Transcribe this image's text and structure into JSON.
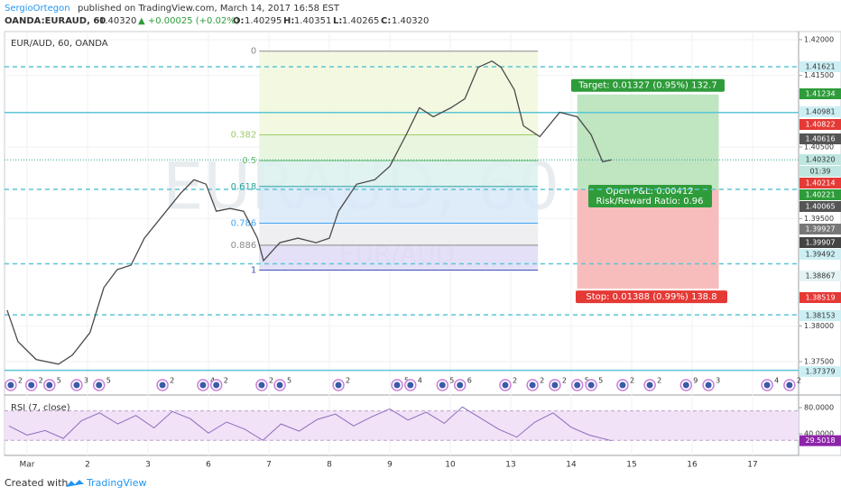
{
  "header": {
    "author": "SergioOrtegon",
    "published": "published on TradingView.com, March 14, 2017 16:58 EST",
    "symbol": "OANDA:EURAUD, 60",
    "last": "1.40320",
    "change": "▲ +0.00025 (+0.02%)",
    "open_label": "O:",
    "open": "1.40295",
    "high_label": "H:",
    "high": "1.40351",
    "low_label": "L:",
    "low": "1.40265",
    "close_label": "C:",
    "close": "1.40320"
  },
  "pane_title": "EUR/AUD, 60, OANDA",
  "watermark": "EURAUD, 60",
  "watermark_sub": "EUR/AUD",
  "chart_data": [
    {
      "type": "line",
      "xlim": [
        -0.373,
        12.761
      ],
      "xticks": [
        {
          "value": 0,
          "label": "Mar"
        },
        {
          "value": 1,
          "label": "2"
        },
        {
          "value": 2,
          "label": "3"
        },
        {
          "value": 3,
          "label": "6"
        },
        {
          "value": 4,
          "label": "7"
        },
        {
          "value": 5,
          "label": "8"
        },
        {
          "value": 6,
          "label": "9"
        },
        {
          "value": 7,
          "label": "10"
        },
        {
          "value": 8,
          "label": "13"
        },
        {
          "value": 9,
          "label": "14"
        },
        {
          "value": 10,
          "label": "15"
        },
        {
          "value": 11,
          "label": "16"
        },
        {
          "value": 12,
          "label": "17"
        }
      ],
      "ylim": [
        1.37046,
        1.42113
      ],
      "yticks": [
        {
          "value": 1.42,
          "label": "1.42000"
        },
        {
          "value": 1.415,
          "label": "1.41500"
        },
        {
          "value": 1.405,
          "label": "1.40500"
        },
        {
          "value": 1.395,
          "label": "1.39500"
        },
        {
          "value": 1.38,
          "label": "1.38000"
        },
        {
          "value": 1.375,
          "label": "1.37500"
        }
      ],
      "grid": true,
      "x": [
        -0.33,
        -0.15,
        0.15,
        0.52,
        0.75,
        1.04,
        1.27,
        1.49,
        1.72,
        1.94,
        2.24,
        2.54,
        2.76,
        2.96,
        3.13,
        3.36,
        3.58,
        3.81,
        3.91,
        4.18,
        4.48,
        4.78,
        5.0,
        5.15,
        5.45,
        5.75,
        6.0,
        6.27,
        6.49,
        6.72,
        7.01,
        7.24,
        7.46,
        7.69,
        7.84,
        8.06,
        8.21,
        8.48,
        8.81,
        9.1,
        9.33,
        9.52,
        9.67
      ],
      "series": [
        {
          "color": "#4a4a4a",
          "values": [
            1.3822,
            1.3778,
            1.3753,
            1.37465,
            1.37591,
            1.37905,
            1.38534,
            1.38785,
            1.38848,
            1.39225,
            1.39539,
            1.39853,
            1.40042,
            1.3998,
            1.39602,
            1.3964,
            1.39602,
            1.39225,
            1.38911,
            1.39162,
            1.39225,
            1.39162,
            1.39225,
            1.39602,
            1.39979,
            1.40042,
            1.40231,
            1.4067,
            1.41048,
            1.40922,
            1.41048,
            1.41173,
            1.41613,
            1.41701,
            1.41613,
            1.41299,
            1.40796,
            1.40645,
            1.40985,
            1.40922,
            1.4067,
            1.40293,
            1.4032
          ]
        }
      ],
      "last_price": 1.4032,
      "hlines": [
        {
          "value": 1.41621,
          "style": "dashed"
        },
        {
          "value": 1.40981,
          "style": "solid"
        },
        {
          "value": 1.39907,
          "style": "dashed"
        },
        {
          "value": 1.38867,
          "style": "dashed"
        },
        {
          "value": 1.38153,
          "style": "dashed"
        },
        {
          "value": 1.37379,
          "style": "solid"
        }
      ],
      "hline_color": "#5cc6d6",
      "fib": {
        "x": [
          3.84,
          8.45
        ],
        "high": 1.41839,
        "low": 1.38779,
        "levels": [
          0,
          0.382,
          0.5,
          0.618,
          0.786,
          0.886,
          1
        ],
        "colors": [
          "#8a8a8a",
          "#9ccc65",
          "#66bb6a",
          "#26a69a",
          "#42a5f5",
          "#8a8a8a",
          "#3f51b5"
        ],
        "fills": [
          "#f1f7dc",
          "#e5f4d9",
          "#dcf1ee",
          "#d8e8f8",
          "#ececf0",
          "#dedbf6"
        ]
      },
      "position": {
        "x": [
          9.1,
          11.44
        ],
        "entry": 1.39907,
        "target": 1.41234,
        "stop": 1.38519,
        "target_label": "Target: 0.01327 (0.95%) 132.7",
        "pnl_label": "Open P&L: 0.00412",
        "rr_label": "Risk/Reward Ratio: 0.96",
        "stop_label": "Stop: 0.01388 (0.99%) 138.8"
      },
      "price_labels": [
        {
          "text": "1.41621",
          "bg": "#cdeff4",
          "fg": "#333333"
        },
        {
          "text": "1.41234",
          "bg": "#2e9c3a",
          "fg": "#ffffff"
        },
        {
          "text": "1.40981",
          "bg": "#cdeff4",
          "fg": "#333333"
        },
        {
          "text": "1.40822",
          "bg": "#e53935",
          "fg": "#ffffff"
        },
        {
          "text": "1.40616",
          "bg": "#555555",
          "fg": "#ffffff"
        },
        {
          "text": "1.40320",
          "bg": "#bfe6e0",
          "fg": "#333333"
        },
        {
          "text": "01:39",
          "bg": "#bfe6e0",
          "fg": "#333333"
        },
        {
          "text": "1.40214",
          "bg": "#e53935",
          "fg": "#ffffff"
        },
        {
          "text": "1.40221",
          "bg": "#2e9c3a",
          "fg": "#ffffff"
        },
        {
          "text": "1.40065",
          "bg": "#555555",
          "fg": "#ffffff"
        },
        {
          "text": "1.39927",
          "bg": "#777777",
          "fg": "#ffffff"
        },
        {
          "text": "1.39907",
          "bg": "#444444",
          "fg": "#ffffff"
        },
        {
          "text": "1.39492",
          "bg": "#cdeff4",
          "fg": "#333333"
        },
        {
          "text": "1.38867",
          "bg": "#e6f3f5",
          "fg": "#333333"
        },
        {
          "text": "1.38519",
          "bg": "#e53935",
          "fg": "#ffffff"
        },
        {
          "text": "1.38153",
          "bg": "#cdeff4",
          "fg": "#333333"
        },
        {
          "text": "1.37379",
          "bg": "#cdeff4",
          "fg": "#333333"
        }
      ],
      "events": [
        {
          "x": -0.27,
          "label": "2"
        },
        {
          "x": 0.07,
          "label": "2"
        },
        {
          "x": 0.37,
          "label": "5"
        },
        {
          "x": 0.82,
          "label": "3"
        },
        {
          "x": 1.19,
          "label": "5"
        },
        {
          "x": 2.24,
          "label": "2"
        },
        {
          "x": 2.91,
          "label": "4"
        },
        {
          "x": 3.13,
          "label": "2"
        },
        {
          "x": 3.88,
          "label": "2"
        },
        {
          "x": 4.18,
          "label": "5"
        },
        {
          "x": 5.15,
          "label": "2"
        },
        {
          "x": 6.12,
          "label": "5"
        },
        {
          "x": 6.34,
          "label": "4"
        },
        {
          "x": 6.87,
          "label": "5"
        },
        {
          "x": 7.16,
          "label": "6"
        },
        {
          "x": 7.91,
          "label": "2"
        },
        {
          "x": 8.36,
          "label": "2"
        },
        {
          "x": 8.73,
          "label": "2"
        },
        {
          "x": 9.1,
          "label": "5"
        },
        {
          "x": 9.33,
          "label": "5"
        },
        {
          "x": 9.85,
          "label": "2"
        },
        {
          "x": 10.3,
          "label": "2"
        },
        {
          "x": 10.9,
          "label": "9"
        },
        {
          "x": 11.27,
          "label": "3"
        },
        {
          "x": 12.24,
          "label": "4"
        },
        {
          "x": 12.61,
          "label": "2"
        }
      ]
    },
    {
      "type": "line",
      "title": "RSI (7, close)",
      "ylim": [
        7,
        96.5
      ],
      "yticks": [
        {
          "value": 80,
          "label": "80.0000"
        },
        {
          "value": 40,
          "label": "40.0000"
        }
      ],
      "band": [
        75,
        30
      ],
      "band_color": "#f1e2f7",
      "x": [
        -0.3,
        0.0,
        0.3,
        0.6,
        0.9,
        1.2,
        1.5,
        1.8,
        2.1,
        2.4,
        2.7,
        3.0,
        3.3,
        3.6,
        3.9,
        4.2,
        4.5,
        4.8,
        5.1,
        5.4,
        5.7,
        6.0,
        6.3,
        6.6,
        6.9,
        7.2,
        7.5,
        7.8,
        8.1,
        8.4,
        8.7,
        9.0,
        9.3,
        9.67
      ],
      "series": [
        {
          "name": "RSI",
          "color": "#8e6bbf",
          "values": [
            52,
            38,
            45,
            33,
            60,
            72,
            55,
            68,
            49,
            74,
            63,
            41,
            58,
            47,
            30,
            55,
            44,
            62,
            70,
            52,
            66,
            78,
            61,
            73,
            56,
            81,
            64,
            47,
            35,
            58,
            72,
            50,
            38,
            29.5018
          ],
          "value_labels": [
            null,
            null,
            null,
            null,
            null,
            null,
            null,
            null,
            null,
            null,
            null,
            null,
            null,
            null,
            null,
            null,
            null,
            null,
            null,
            null,
            null,
            null,
            null,
            null,
            null,
            null,
            null,
            null,
            null,
            null,
            null,
            null,
            null,
            "29.5018"
          ]
        }
      ]
    }
  ],
  "footer": {
    "created": "Created with",
    "brand": "TradingView"
  }
}
